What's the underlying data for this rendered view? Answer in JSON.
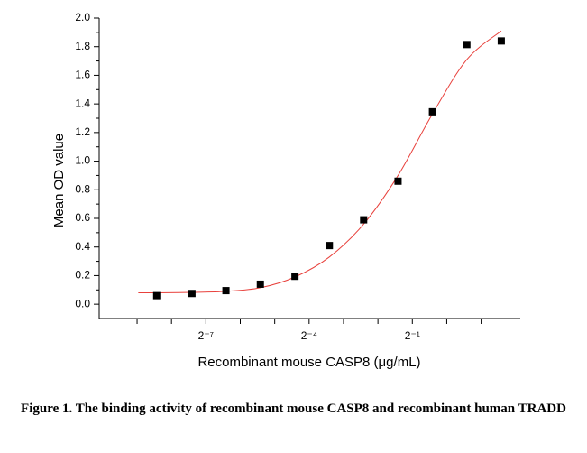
{
  "chart_data": {
    "type": "scatter",
    "xlabel": "Recombinant mouse CASP8 (μg/mL)",
    "ylabel": "Mean OD value",
    "caption": "Figure 1. The binding activity of recombinant mouse CASP8 and recombinant human TRADD",
    "xscale": "log2",
    "xlim": [
      0.00091,
      4.4
    ],
    "xticks": [
      {
        "value": 0.0078125,
        "label": "2⁻⁷"
      },
      {
        "value": 0.0625,
        "label": "2⁻⁴"
      },
      {
        "value": 0.5,
        "label": "2⁻¹"
      }
    ],
    "xminorticks": [
      0.001953125,
      0.00390625,
      0.015625,
      0.03125,
      0.125,
      0.25,
      1,
      2
    ],
    "ylim": [
      -0.1,
      2.0
    ],
    "yticks": [
      {
        "value": 0,
        "label": "0.0"
      },
      {
        "value": 0.2,
        "label": "0.2"
      },
      {
        "value": 0.4,
        "label": "0.4"
      },
      {
        "value": 0.6,
        "label": "0.6"
      },
      {
        "value": 0.8,
        "label": "0.8"
      },
      {
        "value": 1.0,
        "label": "1.0"
      },
      {
        "value": 1.2,
        "label": "1.2"
      },
      {
        "value": 1.4,
        "label": "1.4"
      },
      {
        "value": 1.6,
        "label": "1.6"
      },
      {
        "value": 1.8,
        "label": "1.8"
      },
      {
        "value": 2.0,
        "label": "2.0"
      }
    ],
    "series": [
      {
        "kind": "points",
        "color": "#000000",
        "x": [
          0.0029,
          0.0059,
          0.0117,
          0.0234,
          0.047,
          0.094,
          0.1875,
          0.375,
          0.75,
          1.5,
          3
        ],
        "values": [
          0.06,
          0.075,
          0.095,
          0.14,
          0.195,
          0.41,
          0.59,
          0.86,
          1.345,
          1.815,
          1.84
        ]
      },
      {
        "kind": "curve",
        "color": "#e8413c",
        "x": [
          0.002,
          0.0029,
          0.0059,
          0.0117,
          0.0234,
          0.047,
          0.094,
          0.1875,
          0.375,
          0.75,
          1.5,
          3
        ],
        "values": [
          0.08,
          0.08,
          0.083,
          0.09,
          0.115,
          0.19,
          0.33,
          0.56,
          0.9,
          1.33,
          1.71,
          1.91
        ]
      }
    ]
  }
}
